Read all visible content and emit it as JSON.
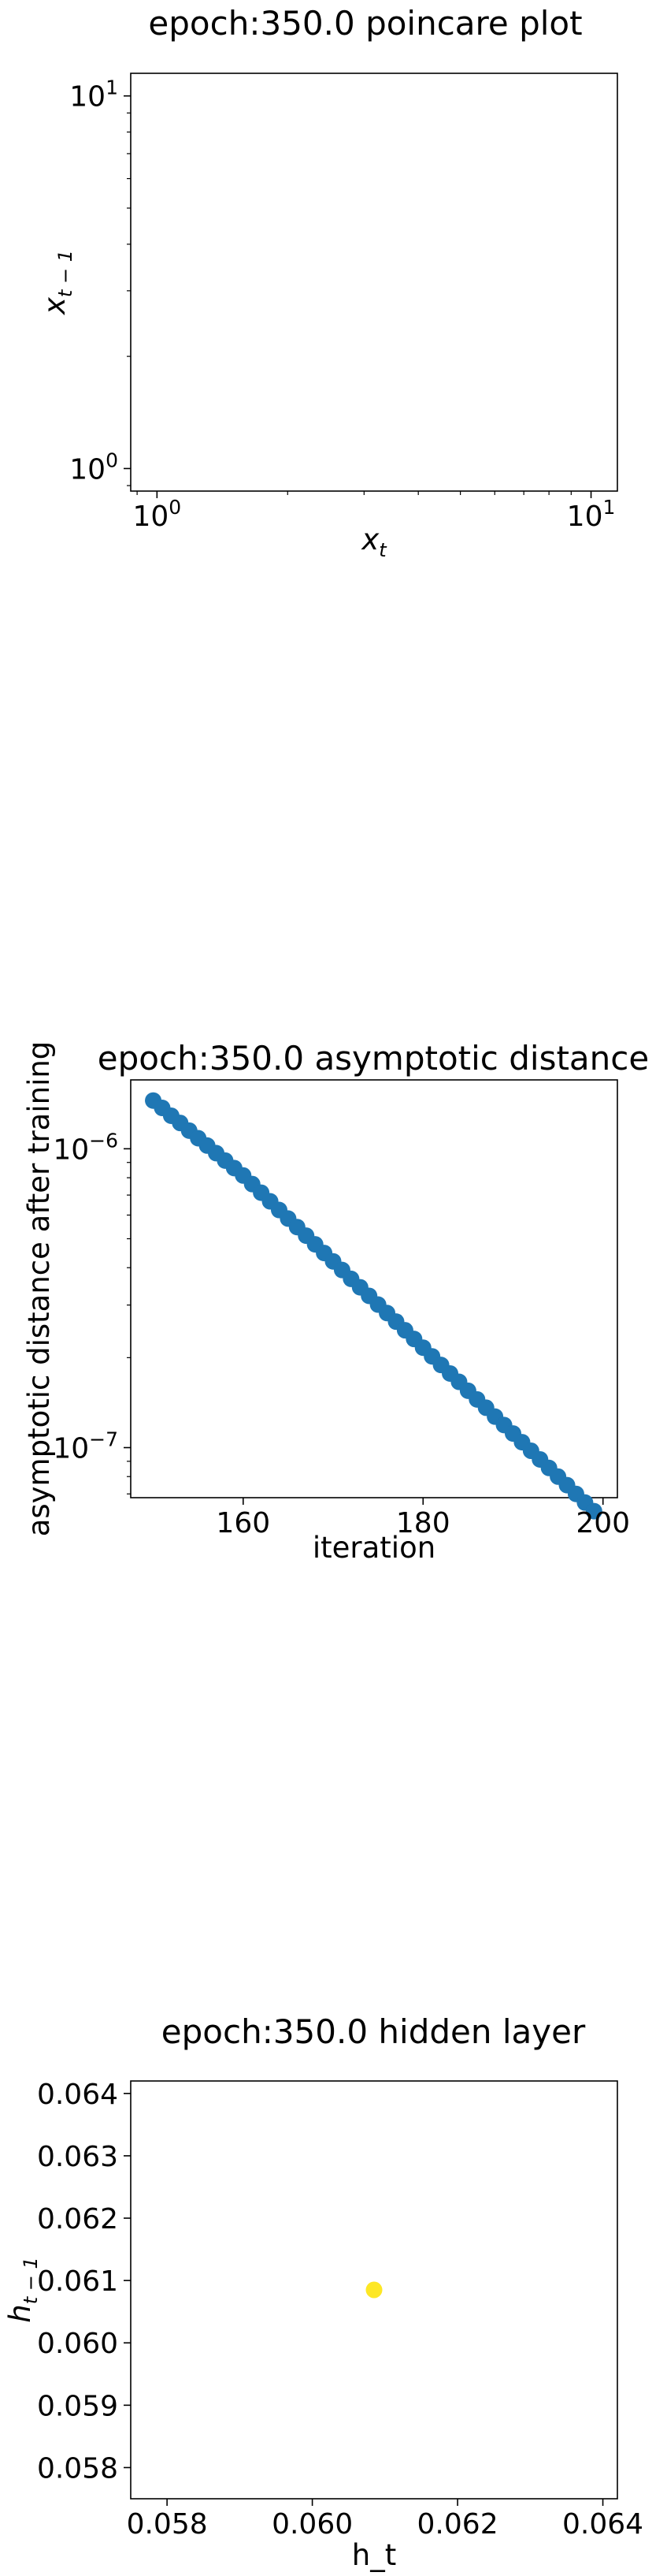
{
  "chart_data": [
    {
      "type": "scatter",
      "title": "epoch:350.0 poincare plot",
      "xlabel": "x_t",
      "ylabel": "x_{t-1}",
      "xscale": "log",
      "yscale": "log",
      "xlim": [
        0.87,
        11.5
      ],
      "ylim": [
        0.87,
        11.5
      ],
      "xticks": [
        {
          "value": 1,
          "label": "10^0"
        },
        {
          "value": 10,
          "label": "10^1"
        }
      ],
      "yticks": [
        {
          "value": 1,
          "label": "10^0"
        },
        {
          "value": 10,
          "label": "10^1"
        }
      ],
      "series": [
        {
          "x": [],
          "y": []
        }
      ],
      "grid": false
    },
    {
      "type": "scatter",
      "title": "epoch:350.0 asymptotic distance",
      "xlabel": "iteration",
      "ylabel": "asymptotic distance after training",
      "xscale": "linear",
      "yscale": "log",
      "xlim": [
        147.5,
        201.6
      ],
      "ylim": [
        6.8e-08,
        1.7e-06
      ],
      "xticks": [
        {
          "value": 160,
          "label": "160"
        },
        {
          "value": 180,
          "label": "180"
        },
        {
          "value": 200,
          "label": "200"
        }
      ],
      "yticks": [
        {
          "value": 1e-06,
          "label": "10^-6"
        },
        {
          "value": 1e-07,
          "label": "10^-7"
        }
      ],
      "series": [
        {
          "color": "#1f77b4",
          "x": [
            150,
            151,
            152,
            153,
            154,
            155,
            156,
            157,
            158,
            159,
            160,
            161,
            162,
            163,
            164,
            165,
            166,
            167,
            168,
            169,
            170,
            171,
            172,
            173,
            174,
            175,
            176,
            177,
            178,
            179,
            180,
            181,
            182,
            183,
            184,
            185,
            186,
            187,
            188,
            189,
            190,
            191,
            192,
            193,
            194,
            195,
            196,
            197,
            198,
            199
          ],
          "y": [
            1.45e-06,
            1.37e-06,
            1.29e-06,
            1.22e-06,
            1.15e-06,
            1.085e-06,
            1.025e-06,
            9.67e-07,
            9.13e-07,
            8.62e-07,
            8.14e-07,
            7.62e-07,
            7.13e-07,
            6.67e-07,
            6.24e-07,
            5.84e-07,
            5.47e-07,
            5.12e-07,
            4.79e-07,
            4.48e-07,
            4.2e-07,
            3.93e-07,
            3.67e-07,
            3.44e-07,
            3.22e-07,
            3.01e-07,
            2.82e-07,
            2.64e-07,
            2.47e-07,
            2.31e-07,
            2.16e-07,
            2.02e-07,
            1.89e-07,
            1.77e-07,
            1.66e-07,
            1.55e-07,
            1.45e-07,
            1.36e-07,
            1.27e-07,
            1.19e-07,
            1.115e-07,
            1.043e-07,
            9.76e-08,
            9.13e-08,
            8.55e-08,
            8e-08,
            7.49e-08,
            7e-08,
            6.55e-08,
            6.13e-08
          ]
        }
      ],
      "grid": false
    },
    {
      "type": "scatter",
      "title": "epoch:350.0 hidden layer",
      "xlabel": "h_t",
      "ylabel": "h_{t-1}",
      "xscale": "linear",
      "yscale": "linear",
      "xlim": [
        0.0575,
        0.0642
      ],
      "ylim": [
        0.0575,
        0.0642
      ],
      "xticks": [
        {
          "value": 0.058,
          "label": "0.058"
        },
        {
          "value": 0.06,
          "label": "0.060"
        },
        {
          "value": 0.062,
          "label": "0.062"
        },
        {
          "value": 0.064,
          "label": "0.064"
        }
      ],
      "yticks": [
        {
          "value": 0.058,
          "label": "0.058"
        },
        {
          "value": 0.059,
          "label": "0.059"
        },
        {
          "value": 0.06,
          "label": "0.060"
        },
        {
          "value": 0.061,
          "label": "0.061"
        },
        {
          "value": 0.062,
          "label": "0.062"
        },
        {
          "value": 0.063,
          "label": "0.063"
        },
        {
          "value": 0.064,
          "label": "0.064"
        }
      ],
      "series": [
        {
          "color": "#fde725",
          "x": [
            0.06085
          ],
          "y": [
            0.06085
          ]
        }
      ],
      "grid": false
    }
  ]
}
